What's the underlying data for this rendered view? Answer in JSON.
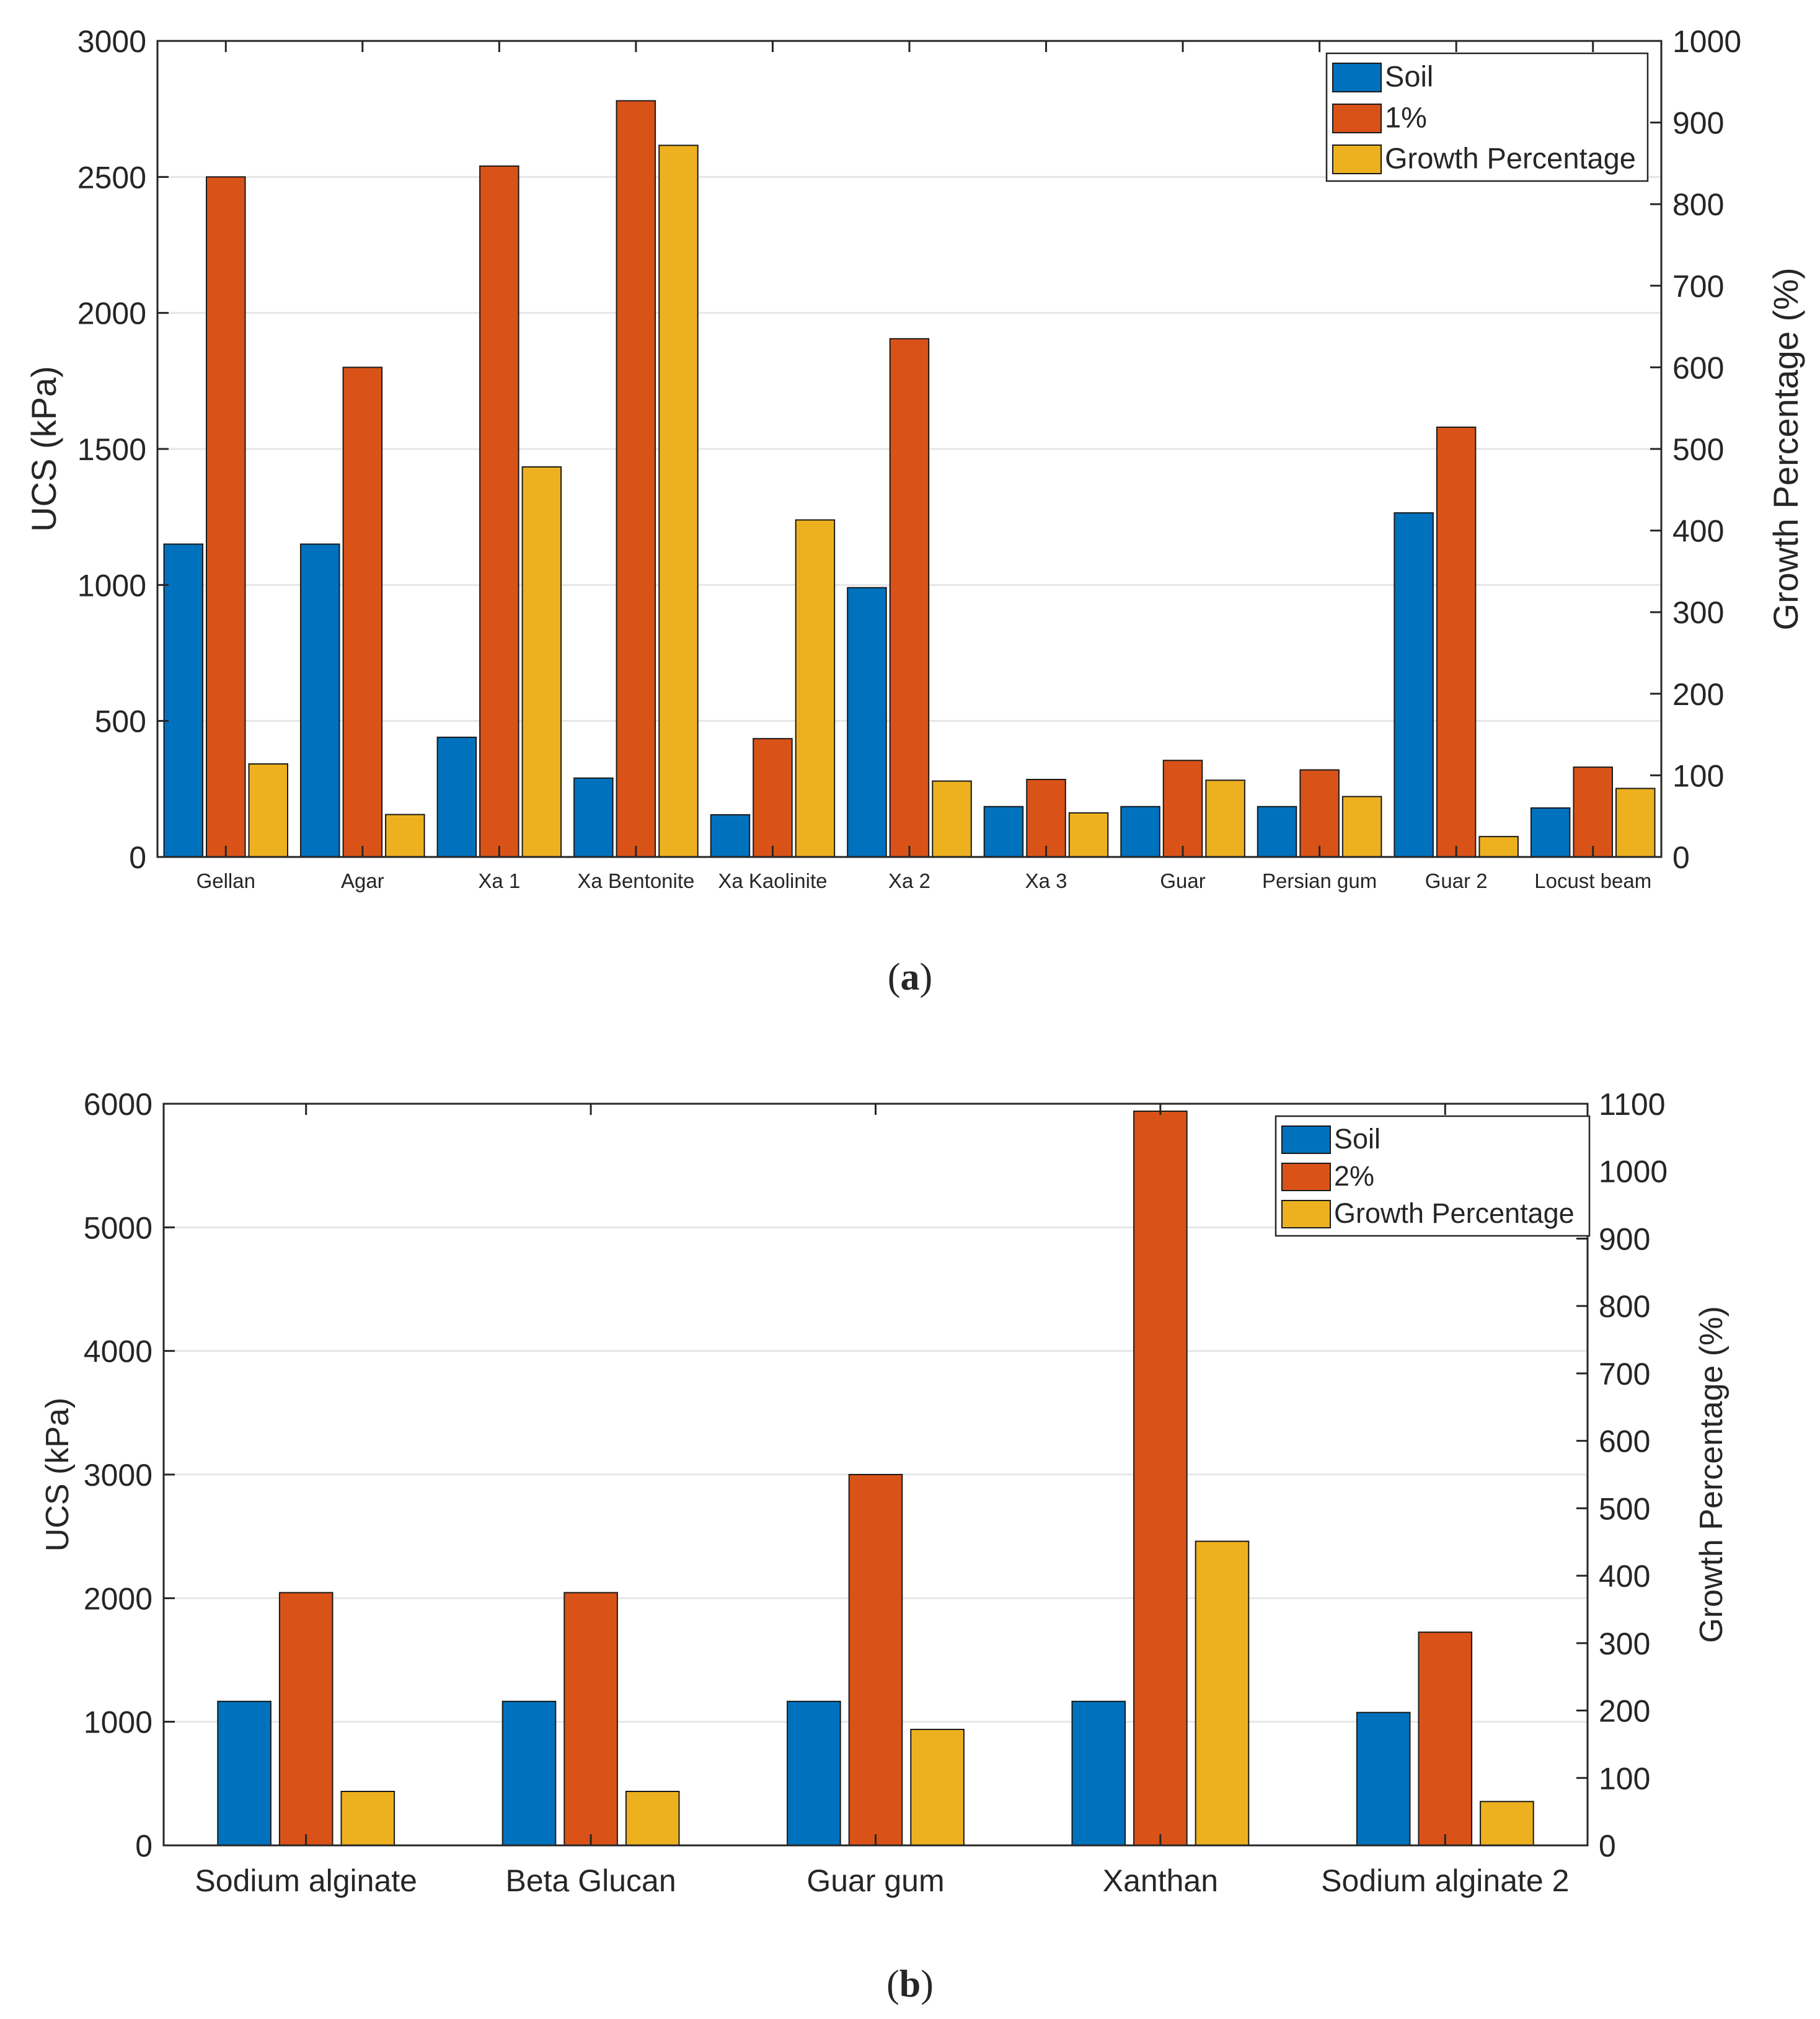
{
  "chart_data": [
    {
      "type": "bar",
      "panel_label": "a",
      "title": "",
      "xlabel": "",
      "ylabel": "UCS (kPa)",
      "y2label": "Growth Percentage (%)",
      "ylim": [
        0,
        3000
      ],
      "y2lim": [
        0,
        1000
      ],
      "yticks": [
        0,
        500,
        1000,
        1500,
        2000,
        2500,
        3000
      ],
      "y2ticks": [
        0,
        100,
        200,
        300,
        400,
        500,
        600,
        700,
        800,
        900,
        1000
      ],
      "grid": true,
      "legend_position": "top-right",
      "categories": [
        "Gellan",
        "Agar",
        "Xa 1",
        "Xa Bentonite",
        "Xa Kaolinite",
        "Xa 2",
        "Xa 3",
        "Guar",
        "Persian gum",
        "Guar 2",
        "Locust beam"
      ],
      "series": [
        {
          "name": "Soil",
          "axis": "left",
          "color": "#0072BD",
          "values": [
            1150,
            1150,
            440,
            290,
            155,
            990,
            185,
            185,
            185,
            1265,
            180
          ]
        },
        {
          "name": "1%",
          "axis": "left",
          "color": "#D95319",
          "values": [
            2500,
            1800,
            2540,
            2780,
            435,
            1905,
            285,
            355,
            320,
            1580,
            330
          ]
        },
        {
          "name": "Growth Percentage",
          "axis": "right",
          "color": "#EDB120",
          "values": [
            114,
            52,
            478,
            872,
            413,
            93,
            54,
            94,
            74,
            25,
            84
          ]
        }
      ]
    },
    {
      "type": "bar",
      "panel_label": "b",
      "title": "",
      "xlabel": "",
      "ylabel": "UCS (kPa)",
      "y2label": "Growth Percentage (%)",
      "ylim": [
        0,
        6000
      ],
      "y2lim": [
        0,
        1100
      ],
      "yticks": [
        0,
        1000,
        2000,
        3000,
        4000,
        5000,
        6000
      ],
      "y2ticks": [
        0,
        100,
        200,
        300,
        400,
        500,
        600,
        700,
        800,
        900,
        1000,
        1100
      ],
      "grid": true,
      "legend_position": "top-right",
      "categories": [
        "Sodium alginate",
        "Beta Glucan",
        "Guar gum",
        "Xanthan",
        "Sodium alginate 2"
      ],
      "series": [
        {
          "name": "Soil",
          "axis": "left",
          "color": "#0072BD",
          "values": [
            1165,
            1165,
            1165,
            1165,
            1075
          ]
        },
        {
          "name": "2%",
          "axis": "left",
          "color": "#D95319",
          "values": [
            2045,
            2045,
            3000,
            5940,
            1725
          ]
        },
        {
          "name": "Growth Percentage",
          "axis": "right",
          "color": "#EDB120",
          "values": [
            80,
            80,
            172,
            451,
            65
          ]
        }
      ]
    }
  ]
}
